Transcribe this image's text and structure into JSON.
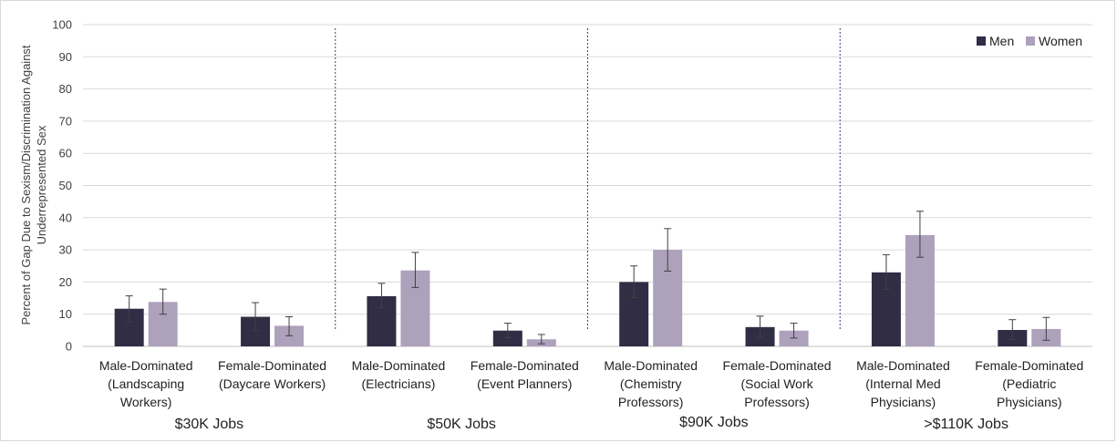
{
  "chart_data": {
    "type": "bar",
    "ylabel": "Percent of Gap Due to Sexism/Discrimination Against Underrepresented Sex",
    "ylim": [
      0,
      100
    ],
    "yticks": [
      0,
      10,
      20,
      30,
      40,
      50,
      60,
      70,
      80,
      90,
      100
    ],
    "grid": true,
    "legend_position": "top-right",
    "categories": [
      [
        "Male-Dominated",
        "(Landscaping",
        "Workers)"
      ],
      [
        "Female-Dominated",
        "(Daycare Workers)"
      ],
      [
        "Male-Dominated",
        "(Electricians)"
      ],
      [
        "Female-Dominated",
        "(Event Planners)"
      ],
      [
        "Male-Dominated",
        "(Chemistry",
        "Professors)"
      ],
      [
        "Female-Dominated",
        "(Social Work",
        "Professors)"
      ],
      [
        "Male-Dominated",
        "(Internal Med",
        "Physicians)"
      ],
      [
        "Female-Dominated",
        "(Pediatric",
        "Physicians)"
      ]
    ],
    "groups": [
      "$30K Jobs",
      "$50K Jobs",
      "$90K Jobs",
      ">$110K Jobs"
    ],
    "series": [
      {
        "name": "Men",
        "color": "#302d45",
        "values": [
          11.7,
          9.2,
          15.6,
          4.9,
          20.0,
          6.0,
          23.0,
          5.1
        ],
        "err_low": [
          7.6,
          4.8,
          12.0,
          2.7,
          15.2,
          2.8,
          17.7,
          2.1
        ],
        "err_high": [
          15.7,
          13.6,
          19.6,
          7.2,
          25.0,
          9.4,
          28.5,
          8.3
        ]
      },
      {
        "name": "Women",
        "color": "#ada1bc",
        "values": [
          13.8,
          6.4,
          23.6,
          2.2,
          30.0,
          4.9,
          34.6,
          5.4
        ],
        "err_low": [
          10.0,
          3.3,
          18.3,
          0.8,
          23.4,
          2.6,
          27.7,
          1.9
        ],
        "err_high": [
          17.8,
          9.2,
          29.2,
          3.7,
          36.6,
          7.2,
          42.0,
          9.0
        ]
      }
    ]
  }
}
